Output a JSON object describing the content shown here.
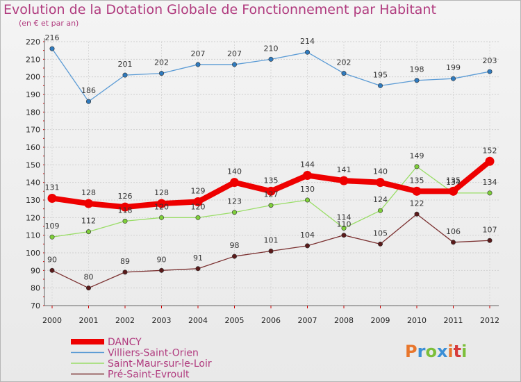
{
  "title": "Evolution de la Dotation Globale de Fonctionnement par Habitant",
  "subtitle": "(en € et par an)",
  "logo": {
    "text": "Proxiti",
    "colors": [
      "#e8762c",
      "#3b8fd6",
      "#7cbf3a",
      "#3b8fd6",
      "#e8762c",
      "#d63b3b",
      "#7cbf3a"
    ]
  },
  "chart_data": {
    "type": "line",
    "title": "Evolution de la Dotation Globale de Fonctionnement par Habitant",
    "subtitle": "(en € et par an)",
    "xlabel": "",
    "ylabel": "",
    "ylim": [
      70,
      220
    ],
    "yticks": [
      70,
      80,
      90,
      100,
      110,
      120,
      130,
      140,
      150,
      160,
      170,
      180,
      190,
      200,
      210,
      220
    ],
    "categories": [
      "2000",
      "2001",
      "2002",
      "2003",
      "2004",
      "2005",
      "2006",
      "2007",
      "2008",
      "2009",
      "2010",
      "2011",
      "2012"
    ],
    "legend_position": "bottom-left",
    "series": [
      {
        "name": "DANCY",
        "color": "#ee0000",
        "values": [
          131,
          128,
          126,
          128,
          129,
          140,
          135,
          144,
          141,
          140,
          135,
          135,
          152
        ]
      },
      {
        "name": "Villiers-Saint-Orien",
        "color": "#5b9bd5",
        "values": [
          216,
          186,
          201,
          202,
          207,
          207,
          210,
          214,
          202,
          195,
          198,
          199,
          203
        ]
      },
      {
        "name": "Saint-Maur-sur-le-Loir",
        "color": "#99dd66",
        "values": [
          109,
          112,
          118,
          120,
          120,
          123,
          127,
          130,
          114,
          124,
          149,
          134,
          134
        ]
      },
      {
        "name": "Pré-Saint-Evroult",
        "color": "#7a2f2f",
        "values": [
          90,
          80,
          89,
          90,
          91,
          98,
          101,
          104,
          110,
          105,
          122,
          106,
          107
        ]
      }
    ]
  }
}
